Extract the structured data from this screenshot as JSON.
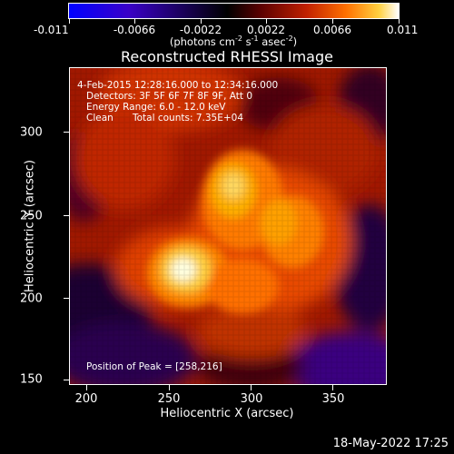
{
  "colorbar": {
    "tick_labels": [
      "-0.011",
      "-0.0066",
      "-0.0022",
      "0.0022",
      "0.0066",
      "0.011"
    ],
    "units_label": "(photons cm",
    "units_exp1": "-2",
    "units_mid": " s",
    "units_exp2": "-1",
    "units_mid2": " asec",
    "units_exp3": "-2",
    "units_end": ")",
    "colors": [
      "#0000ff",
      "#000000",
      "#c02000",
      "#ff7000",
      "#ffffff"
    ]
  },
  "title": "Reconstructed RHESSI Image",
  "info": {
    "time_range": "4-Feb-2015 12:28:16.000 to 12:34:16.000",
    "detectors": "Detectors: 3F 5F 6F 7F 8F 9F, Att 0",
    "energy_range": "Energy Range: 6.0 - 12.0 keV",
    "clean_label": "Clean",
    "total_counts": "Total counts: 7.35E+04",
    "peak": "Position of Peak = [258,216]"
  },
  "axes": {
    "xlabel": "Heliocentric X (arcsec)",
    "ylabel": "Heliocentric Y (arcsec)",
    "x_ticks": [
      "200",
      "250",
      "300",
      "350"
    ],
    "y_ticks": [
      "300",
      "250",
      "200",
      "150"
    ],
    "xlim": [
      190,
      385
    ],
    "ylim": [
      148,
      343
    ]
  },
  "timestamp": "18-May-2022 17:25"
}
